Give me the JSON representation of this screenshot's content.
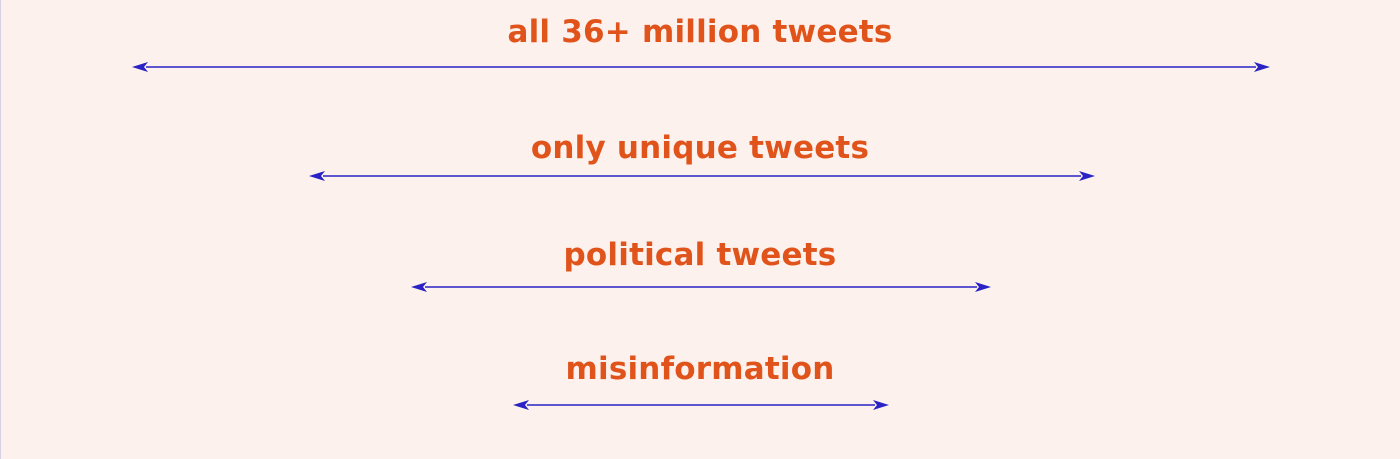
{
  "colors": {
    "background": "#fcf1ec",
    "label": "#e0531a",
    "arrow": "#2a22c4"
  },
  "levels": [
    {
      "label": "all 36+ million tweets"
    },
    {
      "label": "only unique tweets"
    },
    {
      "label": "political tweets"
    },
    {
      "label": "misinformation"
    }
  ]
}
